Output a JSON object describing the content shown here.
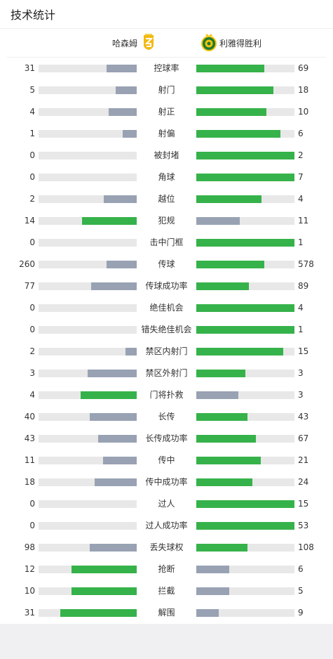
{
  "header": {
    "title": "技术统计"
  },
  "teams": {
    "home": {
      "name": "哈森姆",
      "logo_icon": "yellow-shield-crest"
    },
    "away": {
      "name": "利雅得胜利",
      "logo_icon": "green-yellow-round-crest"
    }
  },
  "colors": {
    "winner": "#36b24a",
    "loser": "#98a2b3",
    "track": "#e8e8e8"
  },
  "stats": [
    {
      "label": "控球率",
      "home": "31",
      "away": "69"
    },
    {
      "label": "射门",
      "home": "5",
      "away": "18"
    },
    {
      "label": "射正",
      "home": "4",
      "away": "10"
    },
    {
      "label": "射偏",
      "home": "1",
      "away": "6"
    },
    {
      "label": "被封堵",
      "home": "0",
      "away": "2"
    },
    {
      "label": "角球",
      "home": "0",
      "away": "7"
    },
    {
      "label": "越位",
      "home": "2",
      "away": "4"
    },
    {
      "label": "犯规",
      "home": "14",
      "away": "11"
    },
    {
      "label": "击中门框",
      "home": "0",
      "away": "1"
    },
    {
      "label": "传球",
      "home": "260",
      "away": "578"
    },
    {
      "label": "传球成功率",
      "home": "77",
      "away": "89"
    },
    {
      "label": "绝佳机会",
      "home": "0",
      "away": "4"
    },
    {
      "label": "错失绝佳机会",
      "home": "0",
      "away": "1"
    },
    {
      "label": "禁区内射门",
      "home": "2",
      "away": "15"
    },
    {
      "label": "禁区外射门",
      "home": "3",
      "away": "3"
    },
    {
      "label": "门将扑救",
      "home": "4",
      "away": "3"
    },
    {
      "label": "长传",
      "home": "40",
      "away": "43"
    },
    {
      "label": "长传成功率",
      "home": "43",
      "away": "67"
    },
    {
      "label": "传中",
      "home": "11",
      "away": "21"
    },
    {
      "label": "传中成功率",
      "home": "18",
      "away": "24"
    },
    {
      "label": "过人",
      "home": "0",
      "away": "15"
    },
    {
      "label": "过人成功率",
      "home": "0",
      "away": "53"
    },
    {
      "label": "丢失球权",
      "home": "98",
      "away": "108"
    },
    {
      "label": "抢断",
      "home": "12",
      "away": "6"
    },
    {
      "label": "拦截",
      "home": "10",
      "away": "5"
    },
    {
      "label": "解围",
      "home": "31",
      "away": "9"
    }
  ]
}
